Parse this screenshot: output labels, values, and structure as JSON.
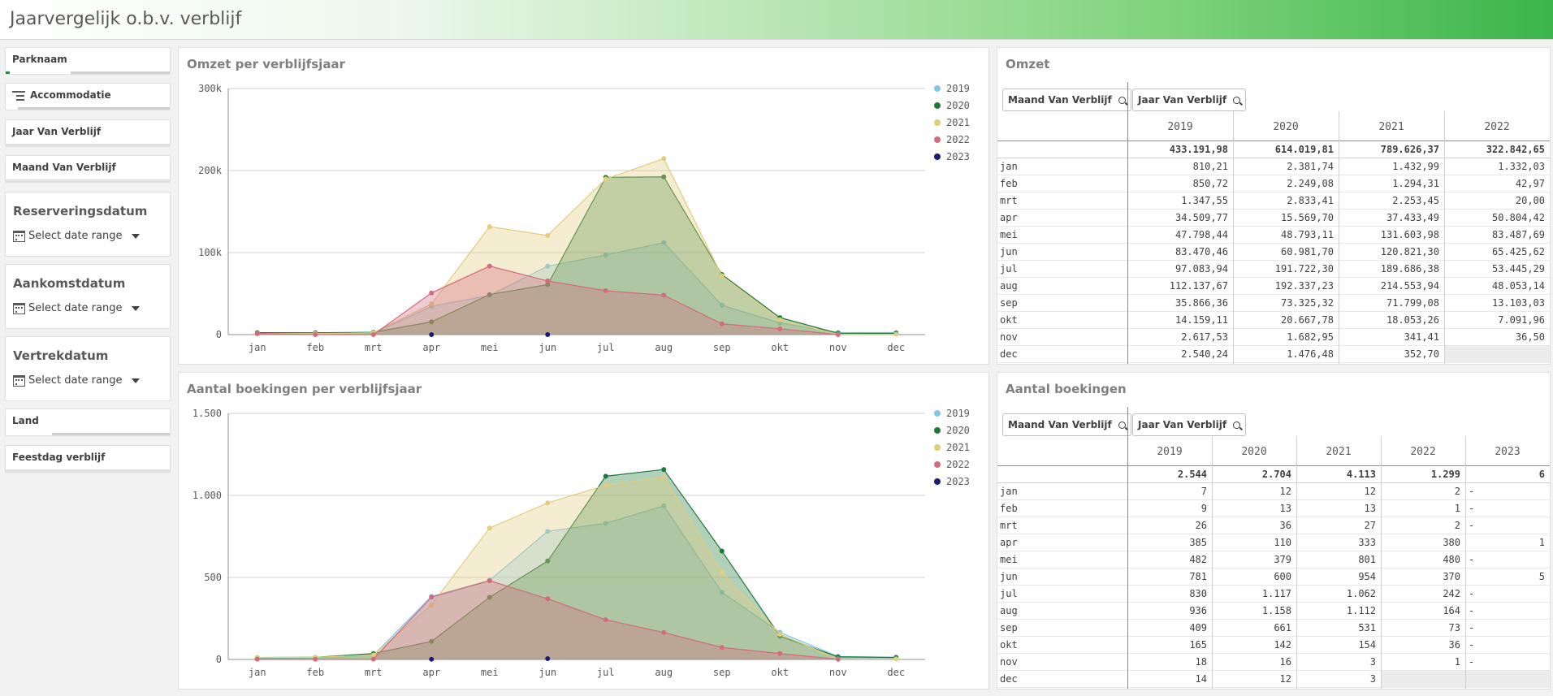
{
  "app": {
    "title": "Jaarvergelijk o.b.v. verblijf"
  },
  "filters": {
    "parknaam": "Parknaam",
    "accommodatie": "Accommodatie",
    "jaar": "Jaar Van Verblijf",
    "maand": "Maand Van Verblijf",
    "reserveringsdatum": "Reserveringsdatum",
    "aankomstdatum": "Aankomstdatum",
    "vertrekdatum": "Vertrekdatum",
    "date_range_placeholder": "Select date range",
    "land": "Land",
    "feestdag": "Feestdag verblijf"
  },
  "omzet_chart": {
    "title": "Omzet per verblijfsjaar",
    "chart_data": {
      "type": "area",
      "title": "Omzet per verblijfsjaar",
      "categories": [
        "jan",
        "feb",
        "mrt",
        "apr",
        "mei",
        "jun",
        "jul",
        "aug",
        "sep",
        "okt",
        "nov",
        "dec"
      ],
      "ylim": [
        0,
        300000
      ],
      "yticks": [
        0,
        100000,
        200000,
        300000
      ],
      "ytick_labels": [
        "0",
        "100k",
        "200k",
        "300k"
      ],
      "legend": "top-right",
      "grid": true,
      "series": [
        {
          "name": "2019",
          "color": "#7fc8e8",
          "values": [
            810,
            851,
            1348,
            34510,
            47798,
            83470,
            97084,
            112138,
            35866,
            14159,
            2618,
            2540
          ]
        },
        {
          "name": "2020",
          "color": "#1f7a3a",
          "values": [
            2382,
            2249,
            2833,
            15570,
            48793,
            60982,
            191722,
            192337,
            73325,
            20668,
            1683,
            1476
          ]
        },
        {
          "name": "2021",
          "color": "#e3cc7a",
          "values": [
            1433,
            1294,
            2253,
            37433,
            131604,
            120821,
            189686,
            214554,
            71799,
            18053,
            341,
            353
          ]
        },
        {
          "name": "2022",
          "color": "#d46a7e",
          "values": [
            1332,
            43,
            20,
            50804,
            83488,
            65426,
            53445,
            48053,
            13103,
            7092,
            37,
            null
          ]
        },
        {
          "name": "2023",
          "color": "#1b1b7a",
          "values": [
            null,
            null,
            null,
            0,
            null,
            0,
            null,
            null,
            null,
            null,
            null,
            null
          ]
        }
      ]
    }
  },
  "boekingen_chart": {
    "title": "Aantal boekingen per verblijfsjaar",
    "chart_data": {
      "type": "area",
      "title": "Aantal boekingen per verblijfsjaar",
      "categories": [
        "jan",
        "feb",
        "mrt",
        "apr",
        "mei",
        "jun",
        "jul",
        "aug",
        "sep",
        "okt",
        "nov",
        "dec"
      ],
      "ylim": [
        0,
        1500
      ],
      "yticks": [
        0,
        500,
        1000,
        1500
      ],
      "ytick_labels": [
        "0",
        "500",
        "1.000",
        "1.500"
      ],
      "legend": "top-right",
      "grid": true,
      "series": [
        {
          "name": "2019",
          "color": "#7fc8e8",
          "values": [
            7,
            9,
            26,
            385,
            482,
            781,
            830,
            936,
            409,
            165,
            18,
            14
          ]
        },
        {
          "name": "2020",
          "color": "#1f7a3a",
          "values": [
            12,
            13,
            36,
            110,
            379,
            600,
            1117,
            1158,
            661,
            142,
            16,
            12
          ]
        },
        {
          "name": "2021",
          "color": "#e3cc7a",
          "values": [
            12,
            13,
            27,
            333,
            801,
            954,
            1062,
            1112,
            531,
            154,
            3,
            3
          ]
        },
        {
          "name": "2022",
          "color": "#d46a7e",
          "values": [
            2,
            1,
            2,
            380,
            480,
            370,
            242,
            164,
            73,
            36,
            1,
            null
          ]
        },
        {
          "name": "2023",
          "color": "#1b1b7a",
          "values": [
            null,
            null,
            null,
            1,
            null,
            5,
            null,
            null,
            null,
            null,
            null,
            null
          ]
        }
      ]
    }
  },
  "omzet_table": {
    "title": "Omzet",
    "btn_maand": "Maand Van Verblijf",
    "btn_jaar": "Jaar Van Verblijf",
    "columns": [
      "2019",
      "2020",
      "2021",
      "2022"
    ],
    "totals": [
      "433.191,98",
      "614.019,81",
      "789.626,37",
      "322.842,65"
    ],
    "rows": [
      {
        "label": "jan",
        "values": [
          "810,21",
          "2.381,74",
          "1.432,99",
          "1.332,03"
        ]
      },
      {
        "label": "feb",
        "values": [
          "850,72",
          "2.249,08",
          "1.294,31",
          "42,97"
        ]
      },
      {
        "label": "mrt",
        "values": [
          "1.347,55",
          "2.833,41",
          "2.253,45",
          "20,00"
        ]
      },
      {
        "label": "apr",
        "values": [
          "34.509,77",
          "15.569,70",
          "37.433,49",
          "50.804,42"
        ]
      },
      {
        "label": "mei",
        "values": [
          "47.798,44",
          "48.793,11",
          "131.603,98",
          "83.487,69"
        ]
      },
      {
        "label": "jun",
        "values": [
          "83.470,46",
          "60.981,70",
          "120.821,30",
          "65.425,62"
        ]
      },
      {
        "label": "jul",
        "values": [
          "97.083,94",
          "191.722,30",
          "189.686,38",
          "53.445,29"
        ]
      },
      {
        "label": "aug",
        "values": [
          "112.137,67",
          "192.337,23",
          "214.553,94",
          "48.053,14"
        ]
      },
      {
        "label": "sep",
        "values": [
          "35.866,36",
          "73.325,32",
          "71.799,08",
          "13.103,03"
        ]
      },
      {
        "label": "okt",
        "values": [
          "14.159,11",
          "20.667,78",
          "18.053,26",
          "7.091,96"
        ]
      },
      {
        "label": "nov",
        "values": [
          "2.617,53",
          "1.682,95",
          "341,41",
          "36,50"
        ]
      },
      {
        "label": "dec",
        "values": [
          "2.540,24",
          "1.476,48",
          "352,70",
          ""
        ]
      }
    ]
  },
  "boekingen_table": {
    "title": "Aantal boekingen",
    "btn_maand": "Maand Van Verblijf",
    "btn_jaar": "Jaar Van Verblijf",
    "columns": [
      "2019",
      "2020",
      "2021",
      "2022",
      "2023"
    ],
    "totals": [
      "2.544",
      "2.704",
      "4.113",
      "1.299",
      "6"
    ],
    "rows": [
      {
        "label": "jan",
        "values": [
          "7",
          "12",
          "12",
          "2",
          "-"
        ]
      },
      {
        "label": "feb",
        "values": [
          "9",
          "13",
          "13",
          "1",
          "-"
        ]
      },
      {
        "label": "mrt",
        "values": [
          "26",
          "36",
          "27",
          "2",
          "-"
        ]
      },
      {
        "label": "apr",
        "values": [
          "385",
          "110",
          "333",
          "380",
          "1"
        ]
      },
      {
        "label": "mei",
        "values": [
          "482",
          "379",
          "801",
          "480",
          "-"
        ]
      },
      {
        "label": "jun",
        "values": [
          "781",
          "600",
          "954",
          "370",
          "5"
        ]
      },
      {
        "label": "jul",
        "values": [
          "830",
          "1.117",
          "1.062",
          "242",
          "-"
        ]
      },
      {
        "label": "aug",
        "values": [
          "936",
          "1.158",
          "1.112",
          "164",
          "-"
        ]
      },
      {
        "label": "sep",
        "values": [
          "409",
          "661",
          "531",
          "73",
          "-"
        ]
      },
      {
        "label": "okt",
        "values": [
          "165",
          "142",
          "154",
          "36",
          "-"
        ]
      },
      {
        "label": "nov",
        "values": [
          "18",
          "16",
          "3",
          "1",
          "-"
        ]
      },
      {
        "label": "dec",
        "values": [
          "14",
          "12",
          "3",
          "",
          ""
        ]
      }
    ]
  }
}
